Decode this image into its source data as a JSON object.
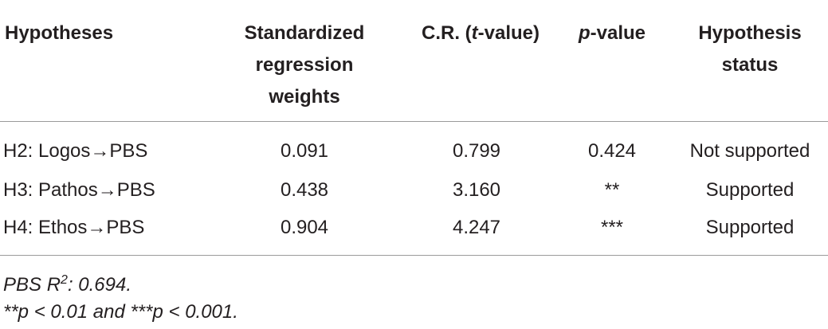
{
  "header": {
    "columns": [
      [
        "Hypotheses"
      ],
      [
        "Standardized regression weights"
      ],
      [
        "C.R. (",
        "t",
        "-value)"
      ],
      [
        "p",
        "-value"
      ],
      [
        "Hypothesis status"
      ]
    ]
  },
  "table": {
    "rows": [
      [
        "H2: Logos→PBS",
        "0.091",
        "0.799",
        "0.424",
        "Not supported"
      ],
      [
        "H3: Pathos→PBS",
        "0.438",
        "3.160",
        "**",
        "Supported"
      ],
      [
        "H4: Ethos→PBS",
        "0.904",
        "4.247",
        "***",
        "Supported"
      ]
    ]
  },
  "footnotes": [
    [
      "PBS R",
      "2",
      ": 0.694."
    ],
    [
      "**p < 0.01 and ***p < 0.001."
    ]
  ]
}
